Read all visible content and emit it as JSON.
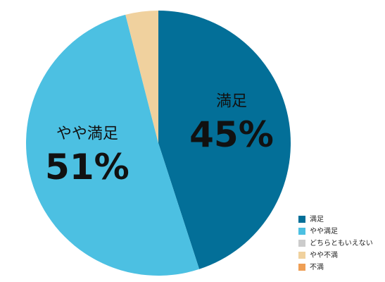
{
  "chart_data": {
    "type": "pie",
    "categories": [
      "満足",
      "やや満足",
      "どちらともいえない",
      "やや不満",
      "不満"
    ],
    "values": [
      45,
      51,
      0,
      4,
      0
    ],
    "value_labels": [
      "45%",
      "51%",
      null,
      null,
      null
    ],
    "colors": [
      "#036f98",
      "#4cc0e2",
      "#cccccc",
      "#f0d19e",
      "#ef9f55"
    ],
    "legend": "bottom-right"
  }
}
